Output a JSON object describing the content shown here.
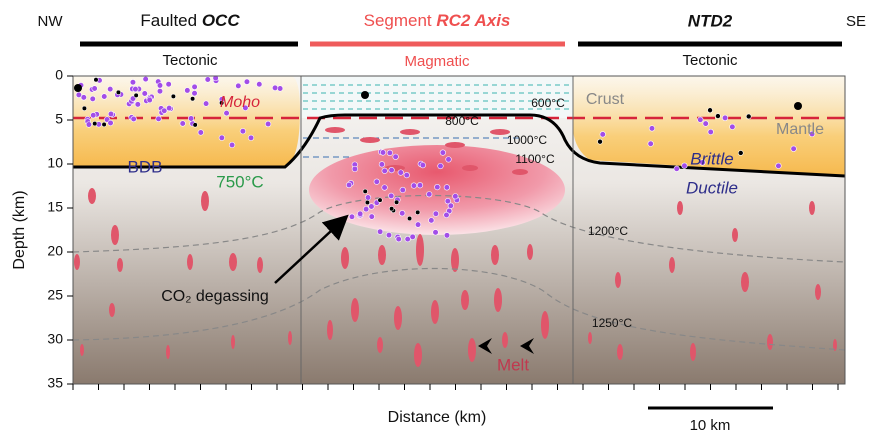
{
  "header": {
    "left": "NW",
    "right": "SE",
    "panels": [
      {
        "title_plain": "Faulted ",
        "title_em": "OCC",
        "regime": "Tectonic"
      },
      {
        "title_plain": "Segment ",
        "title_em": "RC2 Axis",
        "regime": "Magmatic"
      },
      {
        "title_em": "NTD2",
        "regime": "Tectonic"
      }
    ]
  },
  "y_axis": {
    "label": "Depth (km)",
    "ticks": [
      0,
      5,
      10,
      15,
      20,
      25,
      30,
      35
    ]
  },
  "x_axis": {
    "label": "Distance (km)"
  },
  "scale_bar": {
    "label": "10 km"
  },
  "labels": {
    "moho": "Moho",
    "bdb": "BDB",
    "crust": "Crust",
    "mantle": "Mantle",
    "brittle": "Brittle",
    "ductile": "Ductile",
    "co2": "CO₂ degassing",
    "melt": "Melt"
  },
  "isotherms": {
    "t750": "750°C",
    "t600": "600°C",
    "t800": "800°C",
    "t1000": "1000°C",
    "t1100": "1100°C",
    "t1200": "1200°C",
    "t1250": "1250°C"
  }
}
